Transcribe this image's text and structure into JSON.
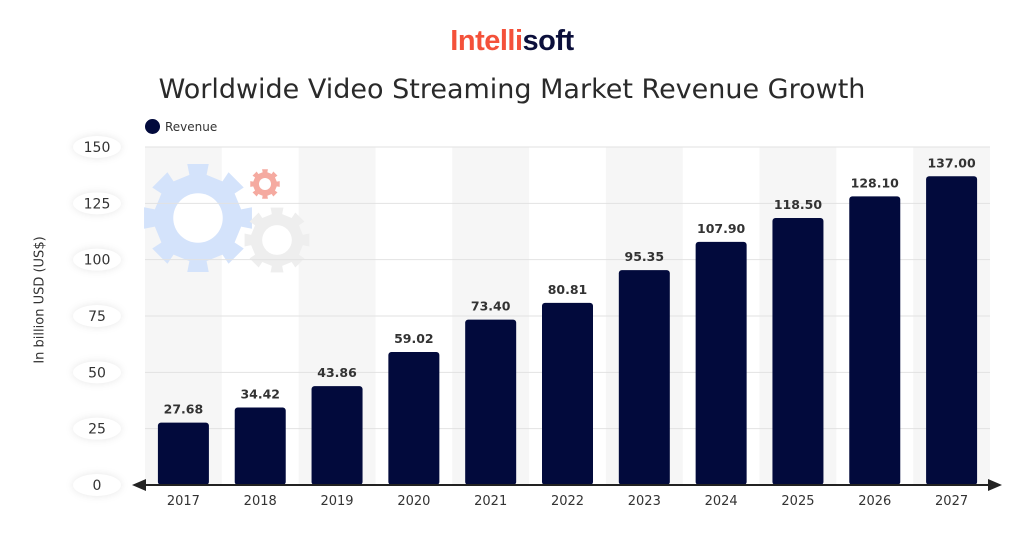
{
  "logo": {
    "part1": "Intelli",
    "part2": "soft"
  },
  "colors": {
    "bar": "#020a3c",
    "logo_accent": "#f4513a",
    "stripe": "#f6f6f6"
  },
  "chart_data": {
    "type": "bar",
    "title": "Worldwide Video Streaming Market Revenue Growth",
    "ylabel": "In billion USD (US$)",
    "xlabel": "",
    "legend": {
      "entries": [
        "Revenue"
      ],
      "placement": "top-left"
    },
    "categories": [
      "2017",
      "2018",
      "2019",
      "2020",
      "2021",
      "2022",
      "2023",
      "2024",
      "2025",
      "2026",
      "2027"
    ],
    "series": [
      {
        "name": "Revenue",
        "values": [
          27.68,
          34.42,
          43.86,
          59.02,
          73.4,
          80.81,
          95.35,
          107.9,
          118.5,
          128.1,
          137.0
        ],
        "labels": [
          "27.68",
          "34.42",
          "43.86",
          "59.02",
          "73.40",
          "80.81",
          "95.35",
          "107.90",
          "118.50",
          "128.10",
          "137.00"
        ]
      }
    ],
    "ylim": [
      0,
      150
    ],
    "yticks": [
      0,
      25,
      50,
      75,
      100,
      125,
      150
    ],
    "grid": true
  }
}
